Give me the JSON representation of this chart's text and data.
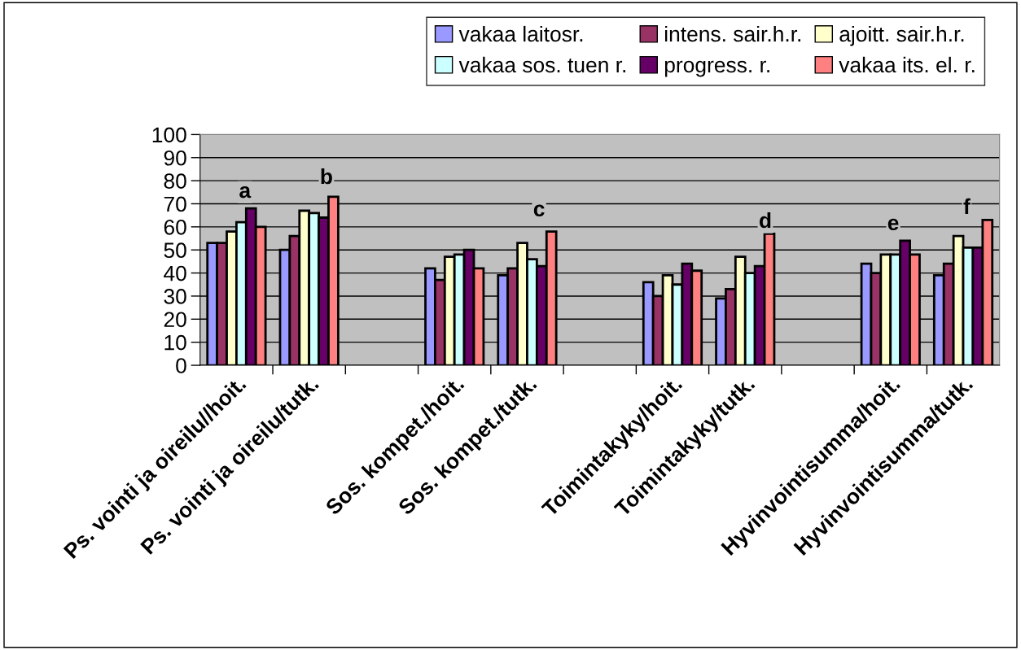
{
  "chart_data": {
    "type": "bar",
    "categories": [
      "Ps. vointi ja oireilu//hoit.",
      "Ps. vointi ja oireilu/tutk.",
      null,
      "Sos. kompet./hoit.",
      "Sos. kompet./tutk.",
      null,
      "Toimintakyky/hoit.",
      "Toimintakyky/tutk.",
      null,
      "Hyvinvointisumma/hoit.",
      "Hyvinvointisumma/tutk."
    ],
    "series": [
      {
        "name": "vakaa laitosr.",
        "color": "#9999ff",
        "values": [
          53,
          50,
          null,
          42,
          39,
          null,
          36,
          29,
          null,
          44,
          39
        ]
      },
      {
        "name": "intens. sair.h.r.",
        "color": "#993366",
        "values": [
          53,
          56,
          null,
          37,
          42,
          null,
          30,
          33,
          null,
          40,
          44
        ]
      },
      {
        "name": "ajoitt. sair.h.r.",
        "color": "#ffffcc",
        "values": [
          58,
          67,
          null,
          47,
          53,
          null,
          39,
          47,
          null,
          48,
          56
        ]
      },
      {
        "name": "vakaa sos. tuen r.",
        "color": "#ccffff",
        "values": [
          62,
          66,
          null,
          48,
          46,
          null,
          35,
          40,
          null,
          48,
          51
        ]
      },
      {
        "name": "progress. r.",
        "color": "#660066",
        "values": [
          68,
          64,
          null,
          50,
          43,
          null,
          44,
          43,
          null,
          54,
          51
        ]
      },
      {
        "name": "vakaa its. el. r.",
        "color": "#ff8080",
        "values": [
          60,
          73,
          null,
          42,
          58,
          null,
          41,
          57,
          null,
          48,
          63
        ]
      }
    ],
    "annotations": [
      "a",
      "b",
      "c",
      "d",
      "e",
      "f"
    ],
    "ylim": [
      0,
      100
    ],
    "yticks": [
      0,
      10,
      20,
      30,
      40,
      50,
      60,
      70,
      80,
      90,
      100
    ],
    "grid": "y",
    "legend": "top right"
  }
}
